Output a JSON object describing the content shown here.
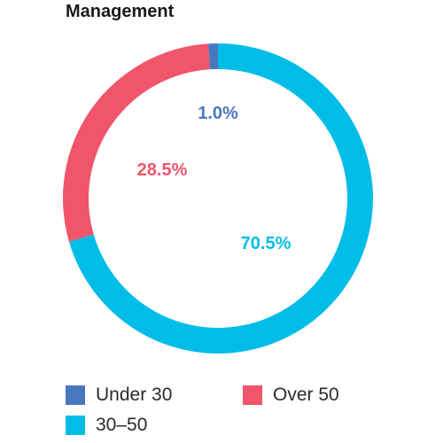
{
  "chart_data": {
    "type": "pie",
    "title": "Management",
    "donut": true,
    "start_angle_deg": 0,
    "direction": "counterclockwise",
    "slices": [
      {
        "name": "Under 30",
        "value": 1.0,
        "label": "1.0%",
        "color": "#4a78bf"
      },
      {
        "name": "Over 50",
        "value": 28.5,
        "label": "28.5%",
        "color": "#f0556a"
      },
      {
        "name": "30–50",
        "value": 70.5,
        "label": "70.5%",
        "color": "#00bde8"
      }
    ],
    "legend": {
      "placement": "bottom",
      "items": [
        {
          "name": "Under 30",
          "color": "#4a78bf"
        },
        {
          "name": "Over 50",
          "color": "#f0556a"
        },
        {
          "name": "30–50",
          "color": "#00bde8"
        }
      ]
    }
  }
}
